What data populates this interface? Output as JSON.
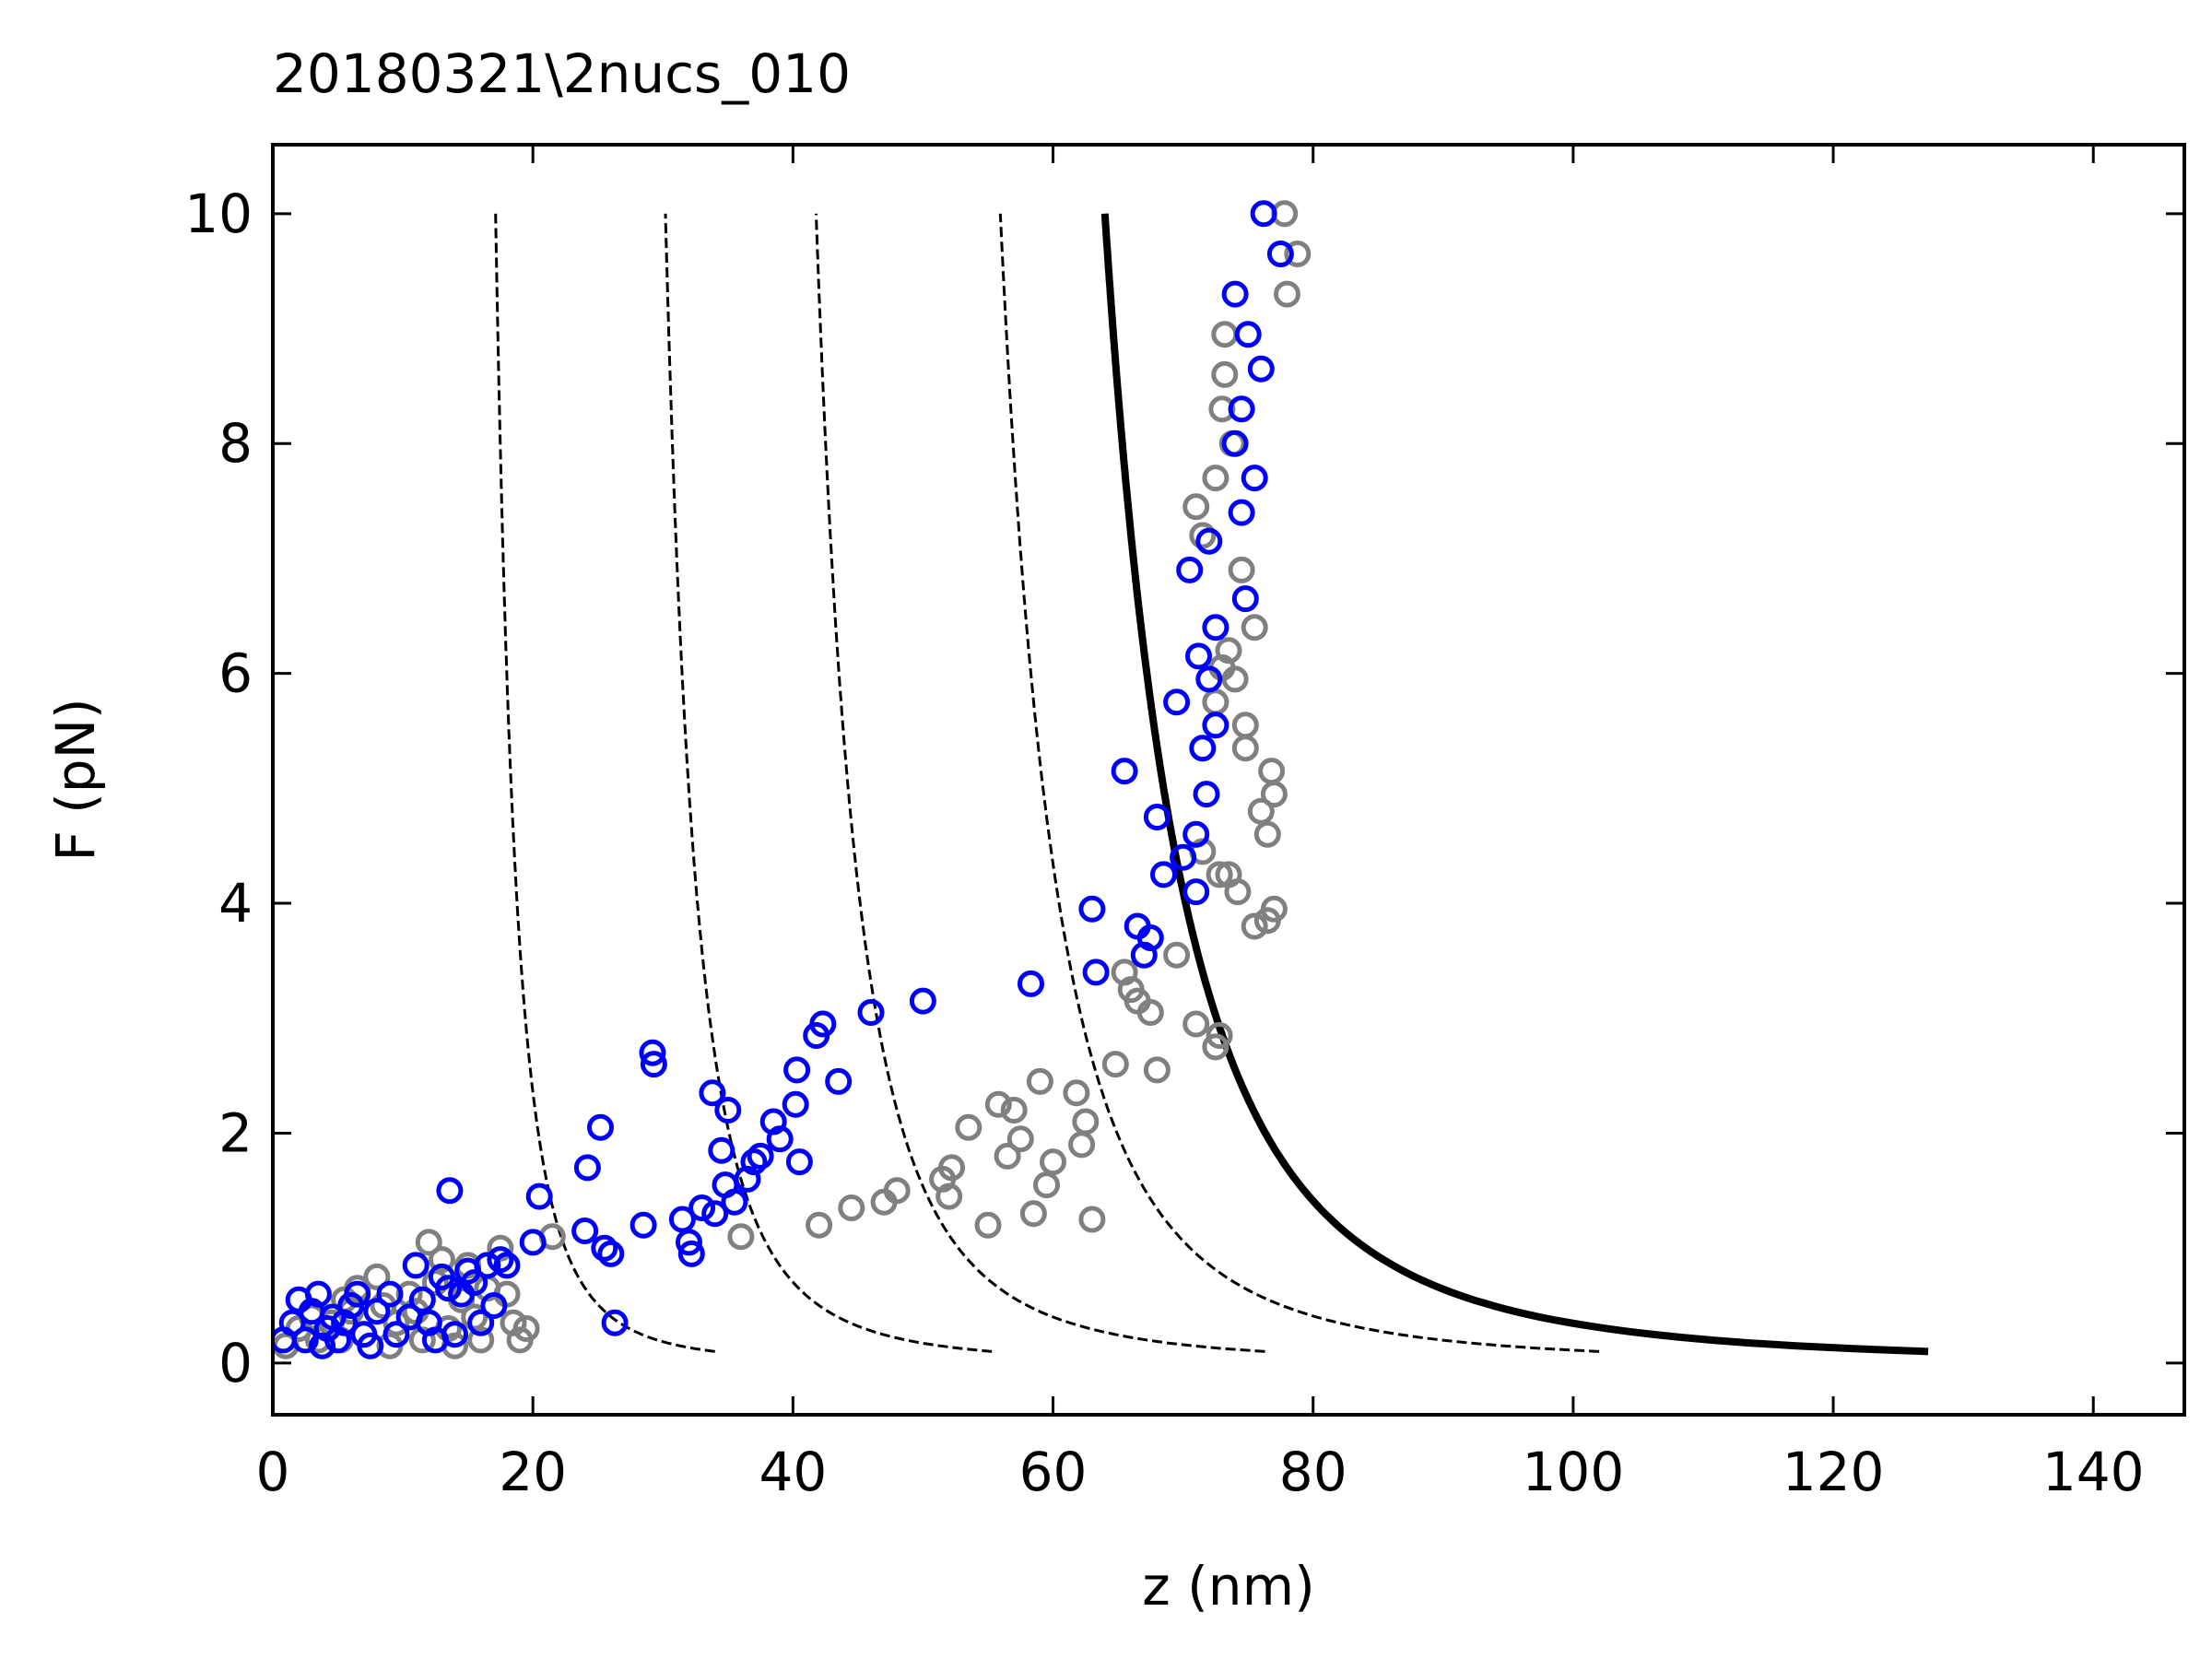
{
  "chart_data": {
    "type": "scatter",
    "title": "20180321\\2nucs_010",
    "xlabel": "z (nm)",
    "ylabel": "F (pN)",
    "xlim": [
      0,
      147
    ],
    "ylim": [
      -0.45,
      10.6
    ],
    "xticks": [
      0,
      20,
      40,
      60,
      80,
      100,
      120,
      140
    ],
    "yticks": [
      0,
      2,
      4,
      6,
      8,
      10
    ],
    "grid": false,
    "legend": "none",
    "colors": {
      "scatter_gray": "#808080",
      "scatter_blue": "#0000ff",
      "line": "#000000"
    },
    "series": [
      {
        "kind": "scatter",
        "color": "#808080",
        "points": [
          [
            1,
            0.15
          ],
          [
            2,
            0.3
          ],
          [
            3,
            0.4
          ],
          [
            3.5,
            0.2
          ],
          [
            4.5,
            0.35
          ],
          [
            5.5,
            0.55
          ],
          [
            5.2,
            0.2
          ],
          [
            6,
            0.45
          ],
          [
            6.5,
            0.65
          ],
          [
            7,
            0.25
          ],
          [
            8,
            0.75
          ],
          [
            8.5,
            0.5
          ],
          [
            9,
            0.15
          ],
          [
            9.5,
            0.35
          ],
          [
            10.5,
            0.6
          ],
          [
            11,
            0.45
          ],
          [
            11.5,
            0.2
          ],
          [
            12,
            1.05
          ],
          [
            12.5,
            0.7
          ],
          [
            13,
            0.9
          ],
          [
            13.5,
            0.3
          ],
          [
            14,
            0.15
          ],
          [
            14.5,
            0.55
          ],
          [
            15,
            0.85
          ],
          [
            15.5,
            0.4
          ],
          [
            16,
            0.2
          ],
          [
            16.5,
            0.65
          ],
          [
            17.5,
            1.0
          ],
          [
            18,
            0.6
          ],
          [
            18.5,
            0.35
          ],
          [
            19.5,
            0.3
          ],
          [
            19,
            0.2
          ],
          [
            21.5,
            1.1
          ],
          [
            36,
            1.1
          ],
          [
            42,
            1.2
          ],
          [
            44.5,
            1.35
          ],
          [
            47,
            1.4
          ],
          [
            48,
            1.5
          ],
          [
            51.5,
            1.6
          ],
          [
            52,
            1.45
          ],
          [
            52.2,
            1.7
          ],
          [
            53.5,
            2.05
          ],
          [
            55,
            1.2
          ],
          [
            55.8,
            2.25
          ],
          [
            56.5,
            1.8
          ],
          [
            57,
            2.2
          ],
          [
            57.5,
            1.95
          ],
          [
            58.5,
            1.3
          ],
          [
            59,
            2.45
          ],
          [
            59.5,
            1.55
          ],
          [
            60,
            1.75
          ],
          [
            61.8,
            2.35
          ],
          [
            62.2,
            1.9
          ],
          [
            62.5,
            2.1
          ],
          [
            63,
            1.25
          ],
          [
            64.8,
            2.6
          ],
          [
            65.5,
            3.4
          ],
          [
            66,
            3.25
          ],
          [
            66.5,
            3.15
          ],
          [
            67.5,
            3.05
          ],
          [
            68,
            2.55
          ],
          [
            69.5,
            3.55
          ],
          [
            71,
            2.95
          ],
          [
            72.5,
            2.75
          ],
          [
            72.8,
            2.85
          ],
          [
            71,
            7.45
          ],
          [
            71.5,
            7.2
          ],
          [
            72.5,
            7.7
          ],
          [
            72.5,
            5.75
          ],
          [
            73,
            8.3
          ],
          [
            73,
            6.05
          ],
          [
            73.2,
            8.6
          ],
          [
            73.2,
            8.95
          ],
          [
            73.5,
            6.2
          ],
          [
            73.5,
            4.25
          ],
          [
            73.8,
            8.0
          ],
          [
            74,
            5.95
          ],
          [
            74.2,
            4.1
          ],
          [
            74.5,
            6.9
          ],
          [
            74.8,
            5.55
          ],
          [
            74.8,
            5.35
          ],
          [
            75.5,
            6.4
          ],
          [
            75.5,
            3.8
          ],
          [
            76,
            4.8
          ],
          [
            76.5,
            4.6
          ],
          [
            76.8,
            5.15
          ],
          [
            77,
            3.95
          ],
          [
            77,
            4.95
          ],
          [
            77.8,
            10.0
          ],
          [
            78,
            9.3
          ],
          [
            78.8,
            9.65
          ],
          [
            71.5,
            4.45
          ],
          [
            76.5,
            3.85
          ],
          [
            72.8,
            4.25
          ]
        ]
      },
      {
        "kind": "scatter",
        "color": "#0000ff",
        "points": [
          [
            0.8,
            0.2
          ],
          [
            1.5,
            0.35
          ],
          [
            2,
            0.55
          ],
          [
            2.5,
            0.2
          ],
          [
            3,
            0.45
          ],
          [
            3.5,
            0.6
          ],
          [
            3.8,
            0.15
          ],
          [
            4.2,
            0.3
          ],
          [
            4.6,
            0.4
          ],
          [
            5,
            0.2
          ],
          [
            5.5,
            0.35
          ],
          [
            6,
            0.5
          ],
          [
            6.5,
            0.6
          ],
          [
            7,
            0.25
          ],
          [
            7.5,
            0.15
          ],
          [
            8,
            0.45
          ],
          [
            9,
            0.6
          ],
          [
            9.5,
            0.25
          ],
          [
            10.5,
            0.4
          ],
          [
            11,
            0.85
          ],
          [
            11.5,
            0.55
          ],
          [
            12,
            0.35
          ],
          [
            12.5,
            0.2
          ],
          [
            13,
            0.75
          ],
          [
            13.5,
            0.65
          ],
          [
            13.6,
            1.5
          ],
          [
            14,
            0.25
          ],
          [
            14.5,
            0.6
          ],
          [
            15,
            0.8
          ],
          [
            15.5,
            0.7
          ],
          [
            16,
            0.35
          ],
          [
            16.5,
            0.85
          ],
          [
            17,
            0.5
          ],
          [
            17.5,
            0.9
          ],
          [
            18,
            0.85
          ],
          [
            20,
            1.05
          ],
          [
            20.5,
            1.45
          ],
          [
            24,
            1.15
          ],
          [
            24.2,
            1.7
          ],
          [
            25.2,
            2.05
          ],
          [
            25.5,
            1.0
          ],
          [
            26,
            0.95
          ],
          [
            26.3,
            0.35
          ],
          [
            28.5,
            1.2
          ],
          [
            29.2,
            2.7
          ],
          [
            29.3,
            2.6
          ],
          [
            31.5,
            1.25
          ],
          [
            32,
            1.05
          ],
          [
            32.2,
            0.95
          ],
          [
            33,
            1.35
          ],
          [
            33.8,
            2.35
          ],
          [
            34,
            1.3
          ],
          [
            34.5,
            1.85
          ],
          [
            34.8,
            1.55
          ],
          [
            35,
            2.2
          ],
          [
            35.5,
            1.4
          ],
          [
            36.5,
            1.6
          ],
          [
            37,
            1.75
          ],
          [
            37.5,
            1.8
          ],
          [
            38.5,
            2.1
          ],
          [
            39,
            1.95
          ],
          [
            40.2,
            2.25
          ],
          [
            40.3,
            2.55
          ],
          [
            40.5,
            1.75
          ],
          [
            41.8,
            2.85
          ],
          [
            42.3,
            2.95
          ],
          [
            43.5,
            2.45
          ],
          [
            46,
            3.05
          ],
          [
            50,
            3.15
          ],
          [
            58.3,
            3.3
          ],
          [
            63,
            3.95
          ],
          [
            63.3,
            3.4
          ],
          [
            65.5,
            5.15
          ],
          [
            66.5,
            3.8
          ],
          [
            67,
            3.55
          ],
          [
            67.5,
            3.7
          ],
          [
            68,
            4.75
          ],
          [
            68.5,
            4.25
          ],
          [
            69.5,
            5.75
          ],
          [
            70,
            4.4
          ],
          [
            70.5,
            6.9
          ],
          [
            71,
            4.1
          ],
          [
            71,
            4.6
          ],
          [
            71.2,
            6.15
          ],
          [
            71.5,
            5.35
          ],
          [
            71.8,
            4.95
          ],
          [
            72,
            5.95
          ],
          [
            72,
            7.15
          ],
          [
            72.5,
            6.4
          ],
          [
            72.5,
            5.55
          ],
          [
            74,
            9.3
          ],
          [
            74,
            8.0
          ],
          [
            74.5,
            7.4
          ],
          [
            74.5,
            8.3
          ],
          [
            74.8,
            6.65
          ],
          [
            75,
            8.95
          ],
          [
            75.5,
            7.7
          ],
          [
            76,
            8.65
          ],
          [
            76.2,
            10.0
          ],
          [
            77.5,
            9.65
          ]
        ]
      },
      {
        "kind": "curve",
        "style": "dashed",
        "z0": 12.5,
        "zmax": 34.0
      },
      {
        "kind": "curve",
        "style": "dashed",
        "z0": 23.3,
        "zmax": 55.3
      },
      {
        "kind": "curve",
        "style": "dashed",
        "z0": 32.3,
        "zmax": 76.3
      },
      {
        "kind": "curve",
        "style": "dashed",
        "z0": 43.3,
        "zmax": 102.0
      },
      {
        "kind": "curve",
        "style": "solid",
        "z0": 46.6,
        "zmax": 127.3
      }
    ]
  }
}
